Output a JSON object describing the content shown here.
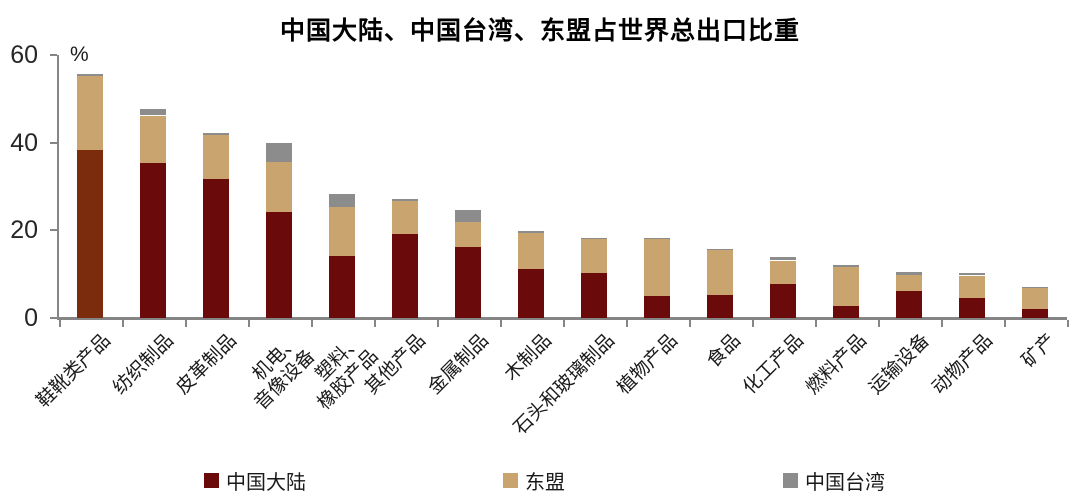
{
  "title": "中国大陆、中国台湾、东盟占世界总出口比重",
  "y_axis": {
    "unit_label": "%",
    "ticks": [
      "60",
      "40",
      "20",
      "0"
    ]
  },
  "legend": {
    "items": [
      {
        "label": "中国大陆",
        "color": "#6B0A0B"
      },
      {
        "label": "东盟",
        "color": "#C9A46F"
      },
      {
        "label": "中国台湾",
        "color": "#8C8C8C"
      }
    ]
  },
  "colors": {
    "mainland": "#6B0A0B",
    "mainland_first_bar": "#7B2C0D",
    "asean": "#C9A46F",
    "taiwan": "#8C8C8C",
    "axis": "#858585"
  },
  "chart_data": {
    "type": "bar",
    "stacked": true,
    "title": "中国大陆、中国台湾、东盟占世界总出口比重",
    "xlabel": "",
    "ylabel": "%",
    "ylim": [
      0,
      60
    ],
    "y_tick_values": [
      0,
      20,
      40,
      60
    ],
    "grid": false,
    "legend_position": "bottom",
    "categories": [
      "鞋靴类产品",
      "纺织制品",
      "皮革制品",
      "机电、\n音像设备",
      "塑料、\n橡胶产品",
      "其他产品",
      "金属制品",
      "木制品",
      "石头和玻璃制品",
      "植物产品",
      "食品",
      "化工产品",
      "燃料产品",
      "运输设备",
      "动物产品",
      "矿产"
    ],
    "series": [
      {
        "name": "中国大陆",
        "key": "mainland",
        "color": "#6B0A0B",
        "color_overrides": {
          "0": "#7B2C0D"
        },
        "values": [
          38.4,
          35.4,
          31.7,
          24.1,
          14.1,
          19.2,
          16.2,
          11.1,
          10.2,
          5.0,
          5.2,
          7.8,
          2.7,
          6.2,
          4.6,
          2.1
        ]
      },
      {
        "name": "东盟",
        "key": "asean",
        "color": "#C9A46F",
        "values": [
          16.9,
          10.8,
          10.1,
          11.5,
          11.2,
          7.4,
          5.7,
          8.2,
          7.8,
          13.0,
          10.3,
          5.3,
          9.0,
          3.6,
          5.1,
          4.7
        ]
      },
      {
        "name": "中国台湾",
        "key": "taiwan",
        "color": "#8C8C8C",
        "values": [
          0.3,
          1.4,
          0.4,
          4.3,
          2.9,
          0.5,
          2.7,
          0.6,
          0.3,
          0.2,
          0.3,
          0.9,
          0.3,
          0.6,
          0.5,
          0.2
        ]
      }
    ]
  }
}
